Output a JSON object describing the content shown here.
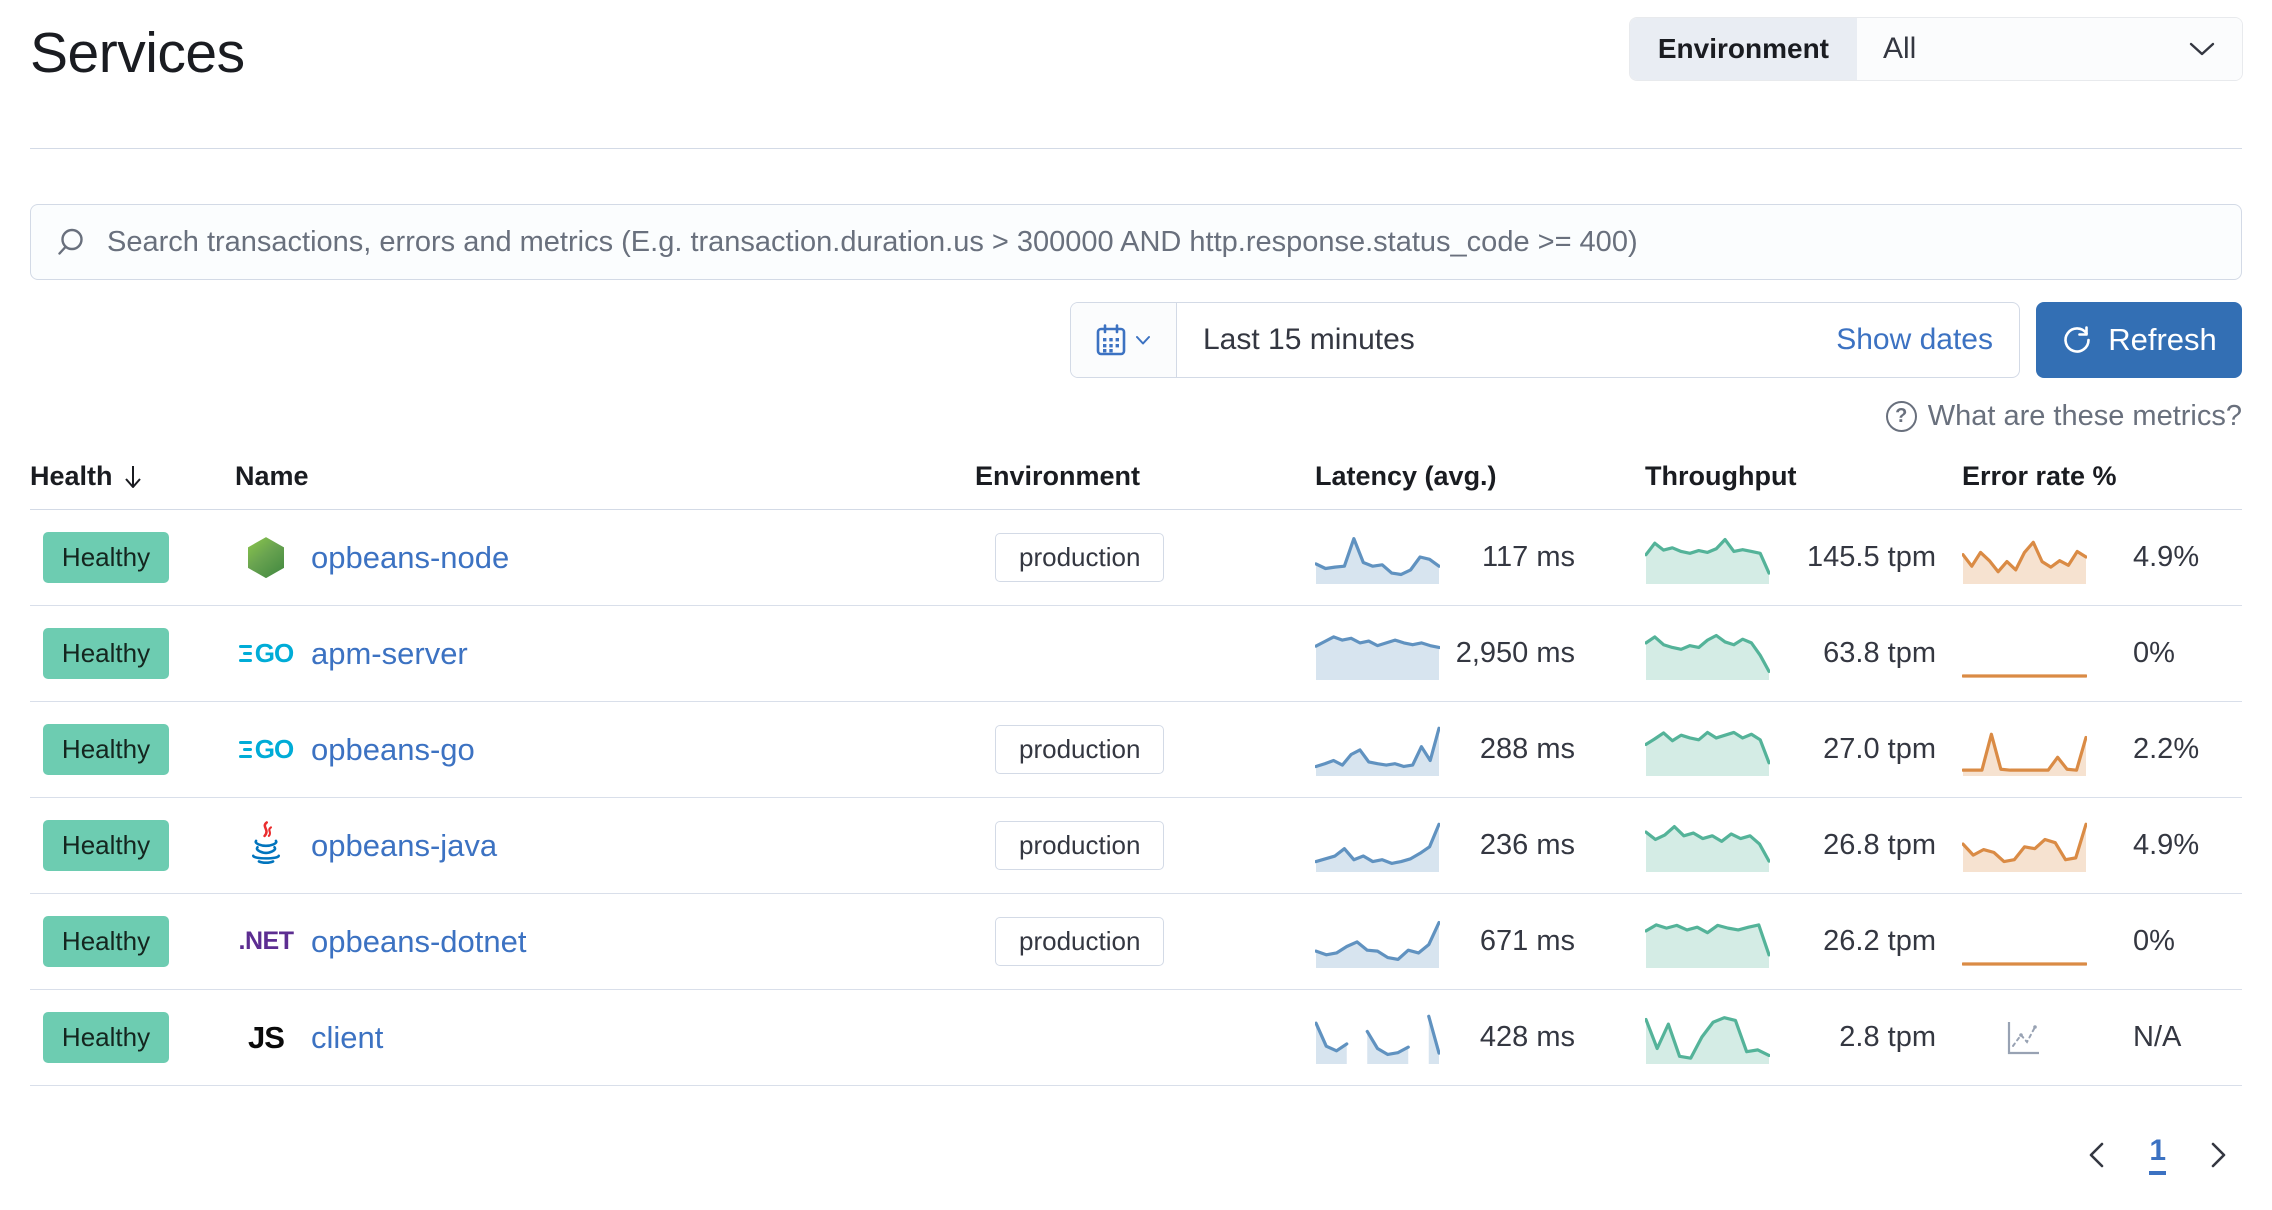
{
  "page": {
    "title": "Services"
  },
  "environment_filter": {
    "label": "Environment",
    "value": "All"
  },
  "search": {
    "placeholder": "Search transactions, errors and metrics (E.g. transaction.duration.us > 300000 AND http.response.status_code >= 400)"
  },
  "time_controls": {
    "range_label": "Last 15 minutes",
    "show_dates_label": "Show dates",
    "refresh_label": "Refresh"
  },
  "metrics_help_label": "What are these metrics?",
  "table": {
    "columns": {
      "health": "Health",
      "name": "Name",
      "environment": "Environment",
      "latency": "Latency (avg.)",
      "throughput": "Throughput",
      "error_rate": "Error rate %"
    },
    "sorted_by": "health",
    "rows": [
      {
        "health": "Healthy",
        "name": "opbeans-node",
        "agent_icon": "nodejs-icon",
        "environment": "production",
        "latency": {
          "label": "117 ms",
          "points": [
            35,
            25,
            28,
            30,
            90,
            38,
            30,
            33,
            15,
            12,
            22,
            50,
            45,
            30
          ]
        },
        "throughput": {
          "label": "145.5 tpm",
          "points": [
            55,
            80,
            65,
            70,
            62,
            58,
            64,
            60,
            68,
            88,
            62,
            66,
            62,
            58,
            15
          ]
        },
        "error_rate": {
          "label": "4.9%",
          "points": [
            55,
            30,
            60,
            42,
            18,
            40,
            22,
            60,
            82,
            40,
            28,
            42,
            32,
            62,
            50
          ]
        }
      },
      {
        "health": "Healthy",
        "name": "apm-server",
        "agent_icon": "go-icon",
        "environment": "",
        "latency": {
          "label": "2,950 ms",
          "points": [
            65,
            75,
            85,
            78,
            82,
            72,
            76,
            66,
            72,
            78,
            72,
            68,
            72,
            66,
            62
          ]
        },
        "throughput": {
          "label": "63.8 tpm",
          "points": [
            72,
            85,
            68,
            62,
            58,
            66,
            62,
            78,
            88,
            74,
            68,
            80,
            72,
            45,
            10
          ]
        },
        "error_rate": {
          "label": "0%",
          "points": [
            0,
            0,
            0,
            0,
            0,
            0,
            0,
            0,
            0,
            0
          ]
        }
      },
      {
        "health": "Healthy",
        "name": "opbeans-go",
        "agent_icon": "go-icon",
        "environment": "production",
        "latency": {
          "label": "288 ms",
          "points": [
            12,
            18,
            25,
            15,
            38,
            48,
            22,
            18,
            15,
            18,
            12,
            15,
            55,
            25,
            95
          ]
        },
        "throughput": {
          "label": "27.0 tpm",
          "points": [
            60,
            72,
            85,
            68,
            80,
            74,
            70,
            86,
            74,
            80,
            86,
            74,
            82,
            70,
            20
          ]
        },
        "error_rate": {
          "label": "2.2%",
          "points": [
            4,
            4,
            4,
            82,
            6,
            4,
            4,
            4,
            4,
            4,
            32,
            6,
            4,
            75
          ]
        }
      },
      {
        "health": "Healthy",
        "name": "opbeans-java",
        "agent_icon": "java-icon",
        "environment": "production",
        "latency": {
          "label": "236 ms",
          "points": [
            14,
            20,
            26,
            42,
            18,
            26,
            14,
            18,
            10,
            14,
            20,
            32,
            46,
            95
          ]
        },
        "throughput": {
          "label": "26.8 tpm",
          "points": [
            78,
            62,
            72,
            90,
            70,
            76,
            64,
            70,
            58,
            74,
            64,
            70,
            52,
            15
          ]
        },
        "error_rate": {
          "label": "4.9%",
          "points": [
            52,
            28,
            40,
            34,
            14,
            18,
            46,
            42,
            62,
            55,
            18,
            22,
            95
          ]
        }
      },
      {
        "health": "Healthy",
        "name": "opbeans-dotnet",
        "agent_icon": "dotnet-icon",
        "environment": "production",
        "latency": {
          "label": "671 ms",
          "points": [
            28,
            20,
            24,
            38,
            48,
            30,
            28,
            14,
            10,
            30,
            24,
            42,
            90
          ]
        },
        "throughput": {
          "label": "26.2 tpm",
          "points": [
            72,
            85,
            78,
            84,
            74,
            80,
            68,
            84,
            78,
            74,
            80,
            85,
            20
          ]
        },
        "error_rate": {
          "label": "0%",
          "points": [
            0,
            0,
            0,
            0,
            0,
            0,
            0,
            0,
            0,
            0
          ]
        }
      },
      {
        "health": "Healthy",
        "name": "client",
        "agent_icon": "js-icon",
        "environment": "",
        "latency": {
          "label": "428 ms",
          "points": [
            80,
            30,
            20,
            35,
            null,
            62,
            25,
            12,
            16,
            28,
            null,
            95,
            15
          ]
        },
        "throughput": {
          "label": "2.8 tpm",
          "points": [
            88,
            25,
            78,
            8,
            4,
            50,
            82,
            92,
            86,
            18,
            22,
            10
          ]
        },
        "error_rate": {
          "label": "N/A",
          "points": null
        }
      }
    ]
  },
  "icon_glyphs": {
    "go": "GO",
    "dotnet": ".NET",
    "js": "JS"
  },
  "colors": {
    "latency": "#6092C0",
    "throughput": "#54B399",
    "error_rate": "#DA8B45",
    "health_badge": "#6DCCB1",
    "link": "#3C72C2",
    "primary_button": "#336FB4"
  },
  "pagination": {
    "current_page": "1"
  }
}
